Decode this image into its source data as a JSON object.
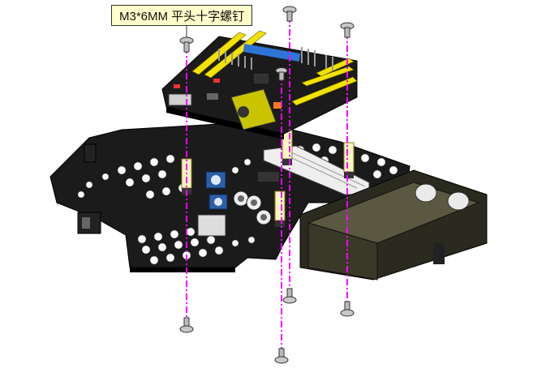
{
  "annotation": {
    "label": "M3*6MM 平头十字螺钉"
  },
  "colors": {
    "guide_line": "#ff00ff",
    "board_black": "#1b1b1b",
    "header_yellow": "#f2e200",
    "screw_steel": "#c8c8c8",
    "callout_fill": "#ffffcc",
    "battery_box": "#2a2a1f"
  },
  "parts": {
    "top_screws": 3,
    "bottom_screws": 4,
    "copper_standoffs": 4
  }
}
